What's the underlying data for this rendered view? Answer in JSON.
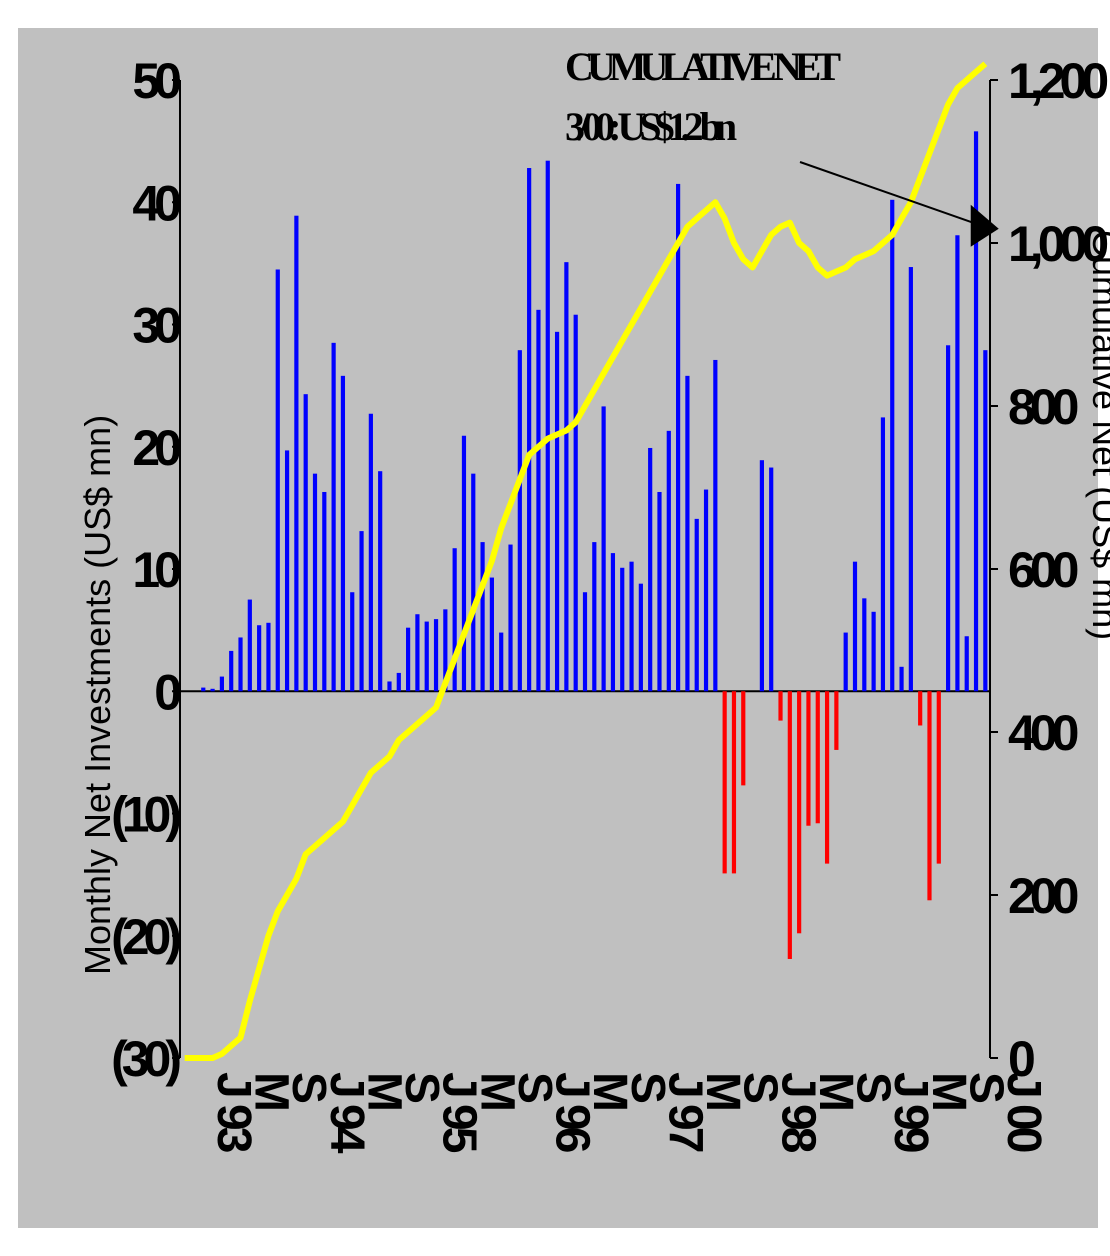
{
  "colors": {
    "plot_bg": "#c0c0c0",
    "positive_bar": "#0000ff",
    "negative_bar": "#ff0000",
    "cumulative_line": "#ffff00"
  },
  "chart_data": {
    "type": "bar",
    "title": "",
    "ylabel": "Monthly Net Investments (US$ mn)",
    "y2label": "Cumulative Net (US$ mn)",
    "ylim": [
      -30,
      50
    ],
    "y2lim": [
      0,
      1200
    ],
    "yticks": [
      "(30)",
      "(20)",
      "(10)",
      "0",
      "10",
      "20",
      "30",
      "40",
      "50"
    ],
    "y2ticks": [
      "0",
      "200",
      "400",
      "600",
      "800",
      "1,000",
      "1,200"
    ],
    "xticks": [
      "J 93",
      "M",
      "S",
      "J 94",
      "M",
      "S",
      "J 95",
      "M",
      "S",
      "J 96",
      "M",
      "S",
      "J 97",
      "M",
      "S",
      "J 98",
      "M",
      "S",
      "J 99",
      "M",
      "S",
      "J 00"
    ],
    "annotation": {
      "line1": "CUMULATIVE NET",
      "line2": "3/00: US$1.2 bn",
      "target_x": 85,
      "target_y2": 1020
    },
    "x": [
      1,
      2,
      3,
      4,
      5,
      6,
      7,
      8,
      9,
      10,
      11,
      12,
      13,
      14,
      15,
      16,
      17,
      18,
      19,
      20,
      21,
      22,
      23,
      24,
      25,
      26,
      27,
      28,
      29,
      30,
      31,
      32,
      33,
      34,
      35,
      36,
      37,
      38,
      39,
      40,
      41,
      42,
      43,
      44,
      45,
      46,
      47,
      48,
      49,
      50,
      51,
      52,
      53,
      54,
      55,
      56,
      57,
      58,
      59,
      60,
      61,
      62,
      63,
      64,
      65,
      66,
      67,
      68,
      69,
      70,
      71,
      72,
      73,
      74,
      75,
      76,
      77,
      78,
      79,
      80,
      81,
      82,
      83,
      84,
      85,
      86,
      87
    ],
    "series": [
      {
        "name": "Monthly Net Investments",
        "axis": "left",
        "type": "bar",
        "values": [
          0,
          0,
          0.3,
          0.2,
          1.2,
          3.3,
          4.4,
          7.5,
          5.4,
          5.6,
          34.5,
          19.7,
          38.9,
          24.3,
          17.8,
          16.3,
          28.5,
          25.8,
          8.1,
          13.1,
          22.7,
          18.0,
          0.8,
          1.5,
          5.2,
          6.3,
          5.7,
          5.9,
          6.7,
          11.7,
          20.9,
          17.8,
          12.2,
          9.3,
          4.8,
          12.0,
          27.9,
          42.8,
          31.2,
          43.4,
          29.4,
          35.1,
          30.8,
          8.1,
          12.2,
          23.3,
          11.3,
          10.1,
          10.6,
          8.8,
          19.9,
          16.3,
          21.3,
          41.5,
          25.8,
          14.1,
          16.5,
          27.1,
          -14.9,
          -14.9,
          -7.7,
          0,
          18.9,
          18.3,
          -2.4,
          -21.9,
          -19.8,
          -11,
          -10.8,
          -14.1,
          -4.8,
          4.8,
          10.6,
          7.6,
          6.5,
          22.4,
          40.2,
          2.0,
          34.7,
          -2.8,
          -17.1,
          -14.1,
          28.3,
          37.3,
          4.5,
          45.8,
          27.9
        ]
      },
      {
        "name": "Cumulative Net",
        "axis": "right",
        "type": "line",
        "values": [
          0,
          0,
          0,
          0,
          5,
          15,
          25,
          70,
          110,
          150,
          180,
          200,
          220,
          250,
          260,
          270,
          280,
          290,
          310,
          330,
          350,
          360,
          370,
          390,
          400,
          410,
          420,
          430,
          460,
          490,
          520,
          550,
          580,
          610,
          650,
          680,
          710,
          740,
          750,
          760,
          765,
          770,
          780,
          800,
          820,
          840,
          860,
          880,
          900,
          920,
          940,
          960,
          980,
          1000,
          1020,
          1030,
          1040,
          1050,
          1030,
          1000,
          980,
          970,
          990,
          1010,
          1020,
          1025,
          1000,
          990,
          970,
          960,
          965,
          970,
          980,
          985,
          990,
          1000,
          1010,
          1030,
          1050,
          1080,
          1110,
          1140,
          1170,
          1190,
          1200,
          1210,
          1220
        ]
      }
    ]
  }
}
